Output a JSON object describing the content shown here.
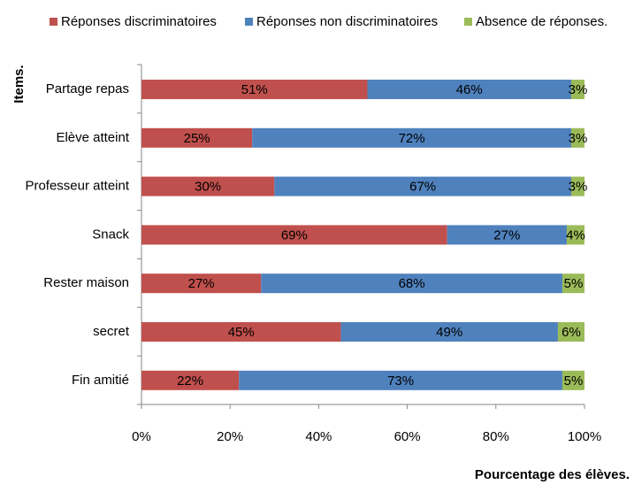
{
  "chart_data": {
    "type": "stacked-bar-horizontal",
    "categories": [
      "Partage repas",
      "Elève atteint",
      "Professeur atteint",
      "Snack",
      "Rester maison",
      "secret",
      "Fin amitié"
    ],
    "series": [
      {
        "name": "Réponses discriminatoires",
        "color": "#c0504d",
        "values": [
          51,
          25,
          30,
          69,
          27,
          45,
          22
        ],
        "value_labels": [
          "51%",
          "25%",
          "30%",
          "69%",
          "27%",
          "45%",
          "22%"
        ]
      },
      {
        "name": "Réponses non discriminatoires",
        "color": "#4f81bd",
        "values": [
          46,
          72,
          67,
          27,
          68,
          49,
          73
        ],
        "value_labels": [
          "46%",
          "72%",
          "67%",
          "27%",
          "68%",
          "49%",
          "73%"
        ]
      },
      {
        "name": "Absence de réponses.",
        "color": "#9bbb59",
        "values": [
          3,
          3,
          3,
          4,
          5,
          6,
          5
        ],
        "value_labels": [
          "3%",
          "3%",
          "3%",
          "4%",
          "5%",
          "6%",
          "5%"
        ]
      }
    ],
    "xlim": [
      0,
      100
    ],
    "xticks": [
      {
        "value": 0,
        "label": "0%"
      },
      {
        "value": 20,
        "label": "20%"
      },
      {
        "value": 40,
        "label": "40%"
      },
      {
        "value": 60,
        "label": "60%"
      },
      {
        "value": 80,
        "label": "80%"
      },
      {
        "value": 100,
        "label": "100%"
      }
    ],
    "xlabel": "Pourcentage des élèves.",
    "ylabel": "Items.",
    "legend": "top"
  }
}
